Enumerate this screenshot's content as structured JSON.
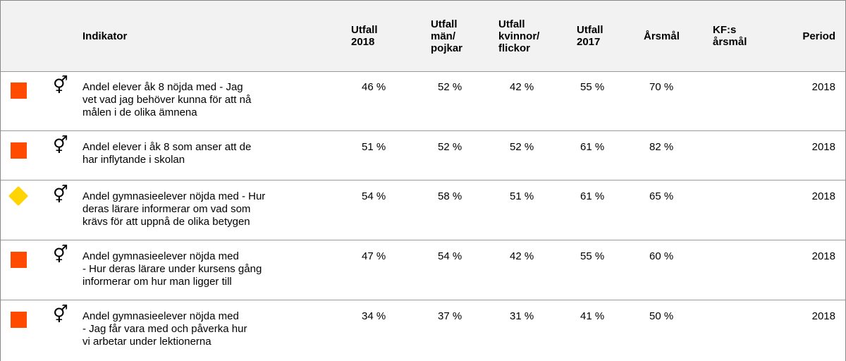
{
  "table": {
    "headers": [
      "Indikator",
      "Utfall\n2018",
      "Utfall\nmän/\npojkar",
      "Utfall\nkvinnor/\nflickor",
      "Utfall\n2017",
      "Årsmål",
      "KF:s\nårsmål",
      "Period"
    ],
    "rows": [
      {
        "status": "red",
        "symbol": "⚥",
        "cells": [
          "Andel elever åk 8 nöjda med - Jag\nvet vad jag behöver kunna för att nå\nmålen i de olika ämnena",
          "46 %",
          "52 %",
          "42 %",
          "55 %",
          "70 %",
          "2018"
        ]
      },
      {
        "status": "red",
        "symbol": "⚥",
        "cells": [
          "Andel elever i åk 8 som anser att de\nhar inflytande i skolan",
          "51 %",
          "52 %",
          "52 %",
          "61 %",
          "82 %",
          "2018"
        ]
      },
      {
        "status": "yellow",
        "symbol": "⚥",
        "cells": [
          "Andel gymnasieelever nöjda med - Hur\nderas lärare informerar om vad som\nkrävs för att uppnå de olika betygen",
          "54 %",
          "58 %",
          "51 %",
          "61 %",
          "65 %",
          "2018"
        ]
      },
      {
        "status": "red",
        "symbol": "⚥",
        "cells": [
          "Andel gymnasieelever nöjda med\n- Hur deras lärare under kursens gång\ninformerar om hur man ligger till",
          "47 %",
          "54 %",
          "42 %",
          "55 %",
          "60 %",
          "2018"
        ]
      },
      {
        "status": "red",
        "symbol": "⚥",
        "cells": [
          "Andel gymnasieelever nöjda med\n- Jag får vara med och påverka hur\nvi arbetar under lektionerna",
          "34 %",
          "37 %",
          "31 %",
          "41 %",
          "50 %",
          "2018"
        ]
      }
    ]
  }
}
